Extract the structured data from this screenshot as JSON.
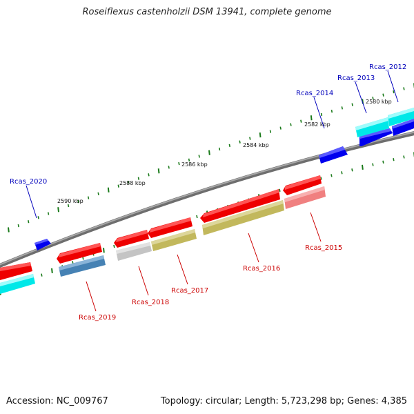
{
  "title": "Roseiflexus castenholzii DSM 13941, complete genome",
  "footer": {
    "accession": "Accession: NC_009767",
    "summary": "Topology: circular; Length: 5,723,298 bp; Genes: 4,385"
  },
  "tick_labels": [
    "2580 kbp",
    "2582 kbp",
    "2584 kbp",
    "2586 kbp",
    "2588 kbp",
    "2590 kbp"
  ],
  "gene_labels": [
    {
      "name": "Rcas_2012",
      "color": "#0000bb"
    },
    {
      "name": "Rcas_2013",
      "color": "#0000bb"
    },
    {
      "name": "Rcas_2014",
      "color": "#0000bb"
    },
    {
      "name": "Rcas_2020",
      "color": "#0000bb"
    },
    {
      "name": "Rcas_2015",
      "color": "#cc0000"
    },
    {
      "name": "Rcas_2016",
      "color": "#cc0000"
    },
    {
      "name": "Rcas_2017",
      "color": "#cc0000"
    },
    {
      "name": "Rcas_2018",
      "color": "#cc0000"
    },
    {
      "name": "Rcas_2019",
      "color": "#cc0000"
    }
  ],
  "colors": {
    "backbone": "#8a8a8a",
    "tick": "#1a7a1a",
    "forward_gene": "#0000ee",
    "reverse_gene": "#ee0000",
    "cds_cyan": "#00e8e8",
    "cds_olive": "#c2b85c",
    "cds_steel": "#4682b4",
    "cds_gray": "#c4c4c4",
    "cds_pink": "#f08080"
  }
}
